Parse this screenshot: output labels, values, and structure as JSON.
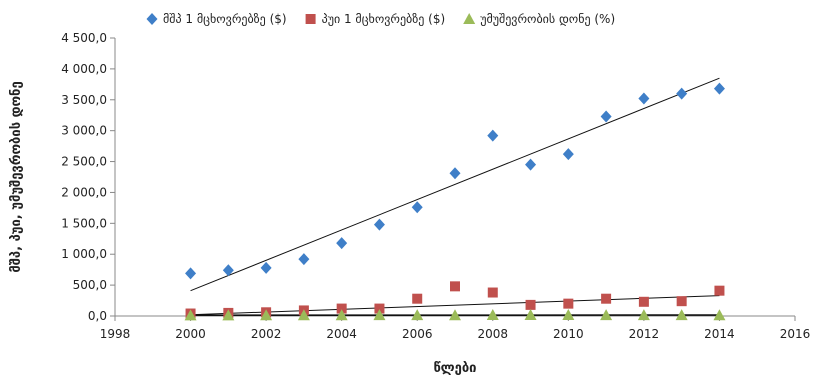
{
  "chart_data": {
    "type": "scatter",
    "xlabel": "წლები",
    "ylabel": "მშპ, პუი, უმუშევრობის დონე",
    "xlim": [
      1998,
      2016
    ],
    "ylim": [
      0,
      4500
    ],
    "x_ticks": [
      "1998",
      "2000",
      "2002",
      "2004",
      "2006",
      "2008",
      "2010",
      "2012",
      "2014",
      "2016"
    ],
    "y_ticks": [
      "0,0",
      "500,0",
      "1 000,0",
      "1 500,0",
      "2 000,0",
      "2 500,0",
      "3 000,0",
      "3 500,0",
      "4 000,0",
      "4 500,0"
    ],
    "grid": false,
    "legend_position": "top",
    "x": [
      2000,
      2001,
      2002,
      2003,
      2004,
      2005,
      2006,
      2007,
      2008,
      2009,
      2010,
      2011,
      2012,
      2013,
      2014
    ],
    "series": [
      {
        "name": "მშპ 1 მცხოვრებზე ($)",
        "marker": "diamond",
        "color": "#3f7fc8",
        "values": [
          690,
          740,
          780,
          920,
          1180,
          1480,
          1760,
          2310,
          2920,
          2450,
          2620,
          3230,
          3520,
          3600,
          3680
        ],
        "trendline": [
          410,
          3850
        ]
      },
      {
        "name": "პუი 1 მცხოვრებზე ($)",
        "marker": "square",
        "color": "#c0504d",
        "values": [
          40,
          50,
          60,
          90,
          120,
          120,
          280,
          480,
          380,
          180,
          200,
          280,
          230,
          240,
          410
        ],
        "trendline": [
          20,
          330
        ]
      },
      {
        "name": "უმუშევრობის დონე (%)",
        "marker": "triangle",
        "color": "#9bbb59",
        "values": [
          11,
          11,
          12,
          12,
          13,
          14,
          14,
          13,
          17,
          17,
          16,
          15,
          15,
          14,
          13
        ],
        "trendline": [
          12,
          15
        ]
      }
    ]
  }
}
